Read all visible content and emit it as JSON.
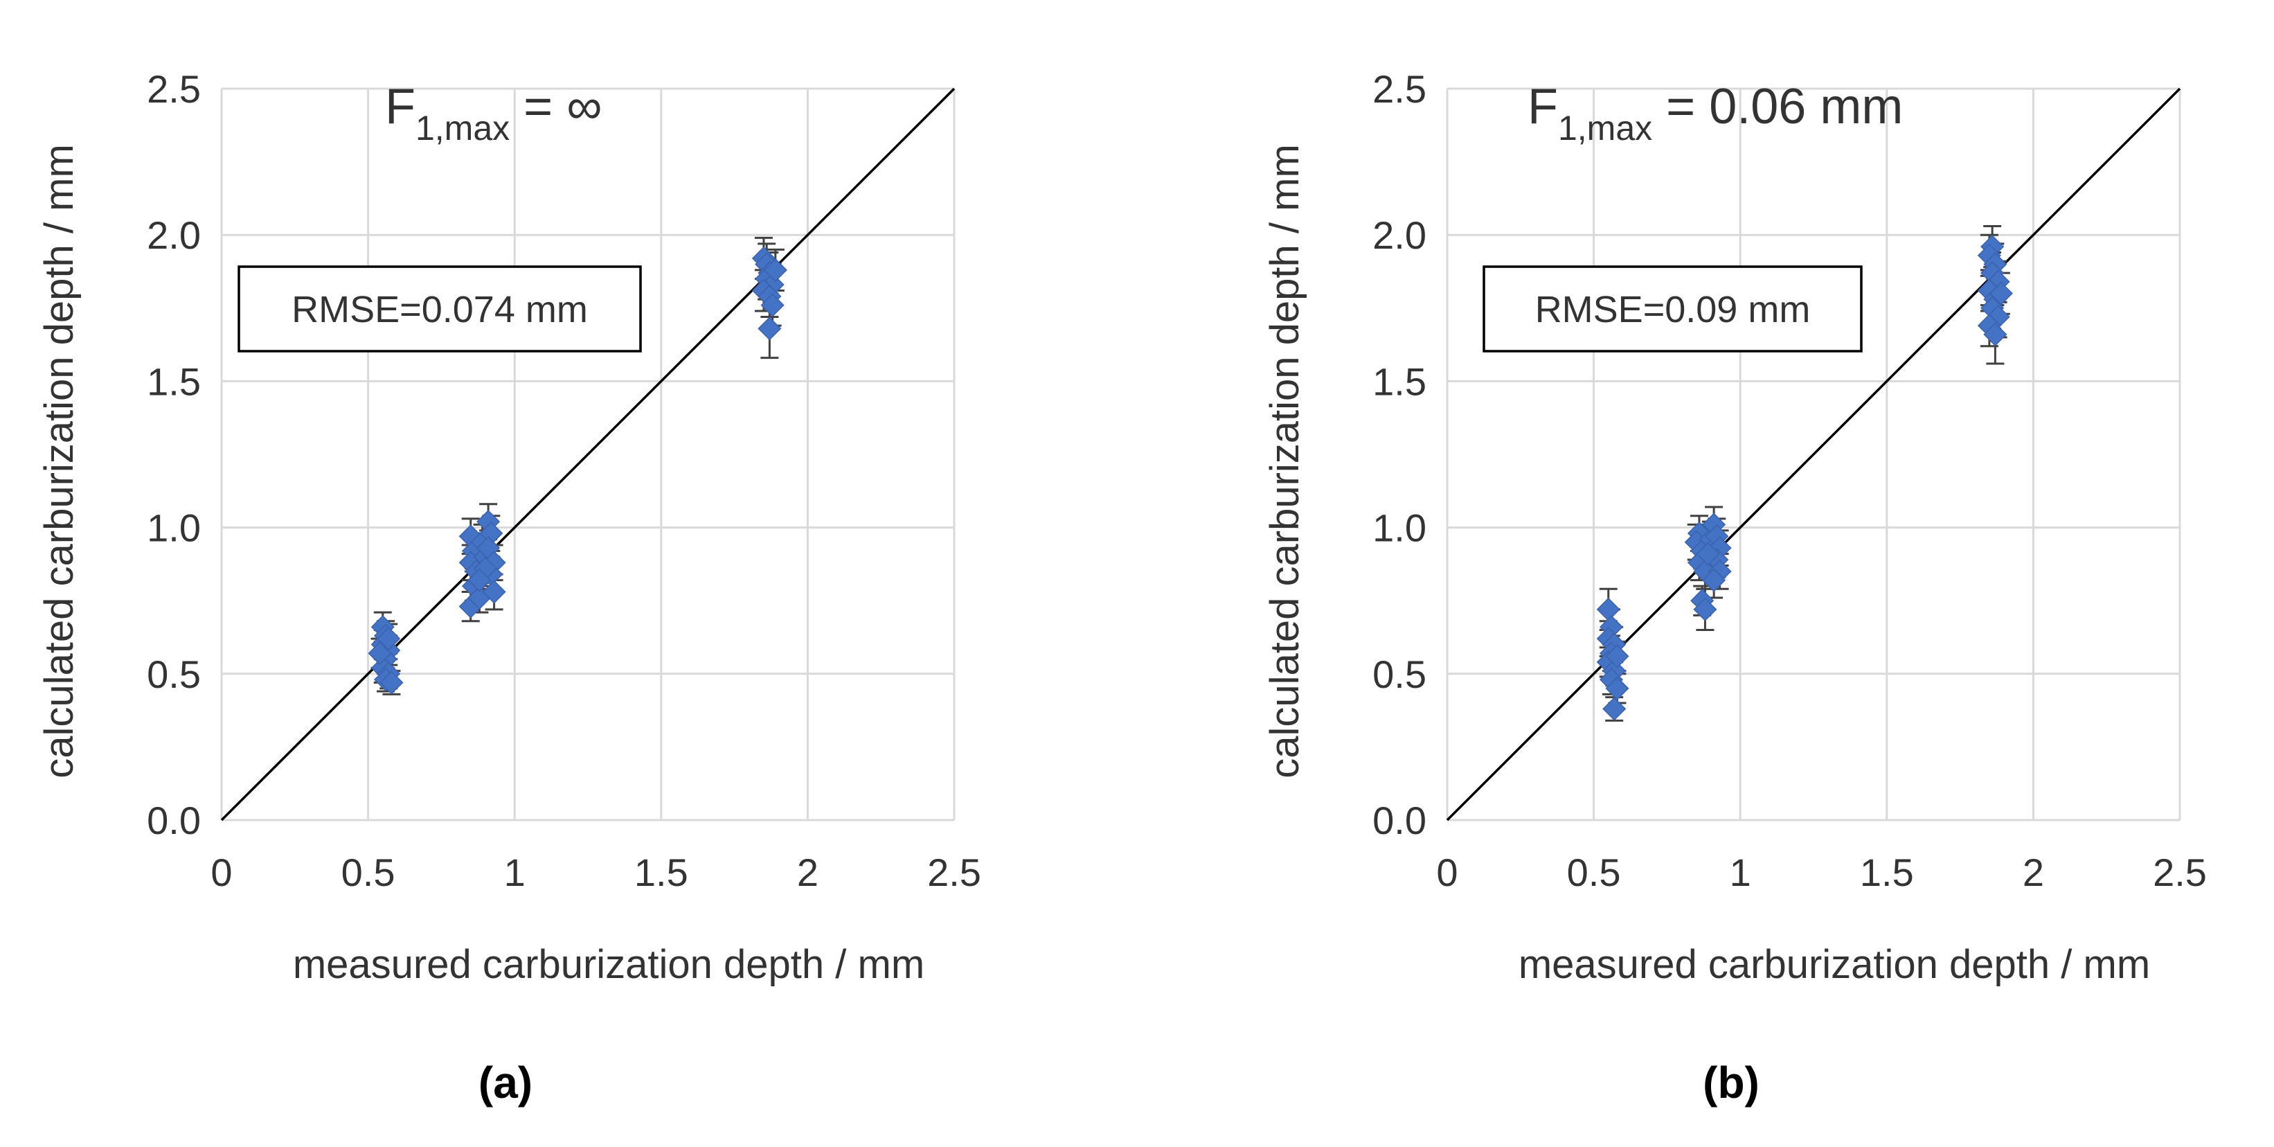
{
  "chart_data": [
    {
      "type": "scatter",
      "panel_label": "(a)",
      "annotation": {
        "main": "F",
        "sub": "1,max",
        "rest": " = ∞"
      },
      "rmse_label": "RMSE=0.074 mm",
      "xlabel": "measured carburization depth / mm",
      "ylabel": "calculated carburization depth / mm",
      "xlim": [
        0,
        2.5
      ],
      "ylim": [
        0,
        2.5
      ],
      "x_ticks": [
        "0",
        "0.5",
        "1",
        "1.5",
        "2",
        "2.5"
      ],
      "y_ticks": [
        "0.0",
        "0.5",
        "1.0",
        "1.5",
        "2.0",
        "2.5"
      ],
      "grid": true,
      "reference_line": [
        [
          0,
          0
        ],
        [
          2.5,
          2.5
        ]
      ],
      "marker_color": "#4472C4",
      "points": [
        {
          "x": 0.55,
          "y": 0.66,
          "err": 0.05
        },
        {
          "x": 0.56,
          "y": 0.63,
          "err": 0.05
        },
        {
          "x": 0.55,
          "y": 0.6,
          "err": 0.05
        },
        {
          "x": 0.57,
          "y": 0.58,
          "err": 0.05
        },
        {
          "x": 0.56,
          "y": 0.55,
          "err": 0.05
        },
        {
          "x": 0.55,
          "y": 0.52,
          "err": 0.05
        },
        {
          "x": 0.57,
          "y": 0.5,
          "err": 0.05
        },
        {
          "x": 0.56,
          "y": 0.48,
          "err": 0.04
        },
        {
          "x": 0.58,
          "y": 0.47,
          "err": 0.04
        },
        {
          "x": 0.57,
          "y": 0.62,
          "err": 0.05
        },
        {
          "x": 0.54,
          "y": 0.57,
          "err": 0.05
        },
        {
          "x": 0.85,
          "y": 0.97,
          "err": 0.06
        },
        {
          "x": 0.86,
          "y": 0.92,
          "err": 0.06
        },
        {
          "x": 0.85,
          "y": 0.88,
          "err": 0.06
        },
        {
          "x": 0.87,
          "y": 0.85,
          "err": 0.06
        },
        {
          "x": 0.86,
          "y": 0.8,
          "err": 0.05
        },
        {
          "x": 0.85,
          "y": 0.73,
          "err": 0.05
        },
        {
          "x": 0.88,
          "y": 0.76,
          "err": 0.05
        },
        {
          "x": 0.89,
          "y": 0.95,
          "err": 0.06
        },
        {
          "x": 0.9,
          "y": 0.9,
          "err": 0.06
        },
        {
          "x": 0.91,
          "y": 1.02,
          "err": 0.06
        },
        {
          "x": 0.92,
          "y": 0.98,
          "err": 0.06
        },
        {
          "x": 0.91,
          "y": 0.93,
          "err": 0.06
        },
        {
          "x": 0.93,
          "y": 0.88,
          "err": 0.06
        },
        {
          "x": 0.92,
          "y": 0.84,
          "err": 0.06
        },
        {
          "x": 0.93,
          "y": 0.78,
          "err": 0.06
        },
        {
          "x": 0.9,
          "y": 0.86,
          "err": 0.06
        },
        {
          "x": 0.88,
          "y": 0.82,
          "err": 0.06
        },
        {
          "x": 1.85,
          "y": 1.92,
          "err": 0.07
        },
        {
          "x": 1.86,
          "y": 1.9,
          "err": 0.07
        },
        {
          "x": 1.87,
          "y": 1.87,
          "err": 0.07
        },
        {
          "x": 1.86,
          "y": 1.85,
          "err": 0.07
        },
        {
          "x": 1.88,
          "y": 1.83,
          "err": 0.07
        },
        {
          "x": 1.85,
          "y": 1.81,
          "err": 0.07
        },
        {
          "x": 1.87,
          "y": 1.79,
          "err": 0.07
        },
        {
          "x": 1.88,
          "y": 1.76,
          "err": 0.07
        },
        {
          "x": 1.89,
          "y": 1.88,
          "err": 0.07
        },
        {
          "x": 1.87,
          "y": 1.68,
          "err": 0.1
        }
      ]
    },
    {
      "type": "scatter",
      "panel_label": "(b)",
      "annotation": {
        "main": "F",
        "sub": "1,max",
        "rest": " = 0.06 mm"
      },
      "rmse_label": "RMSE=0.09 mm",
      "xlabel": "measured carburization depth / mm",
      "ylabel": "calculated carburization depth / mm",
      "xlim": [
        0,
        2.5
      ],
      "ylim": [
        0,
        2.5
      ],
      "x_ticks": [
        "0",
        "0.5",
        "1",
        "1.5",
        "2",
        "2.5"
      ],
      "y_ticks": [
        "0.0",
        "0.5",
        "1.0",
        "1.5",
        "2.0",
        "2.5"
      ],
      "grid": true,
      "reference_line": [
        [
          0,
          0
        ],
        [
          2.5,
          2.5
        ]
      ],
      "marker_color": "#4472C4",
      "points": [
        {
          "x": 0.55,
          "y": 0.72,
          "err": 0.07
        },
        {
          "x": 0.56,
          "y": 0.66,
          "err": 0.06
        },
        {
          "x": 0.55,
          "y": 0.62,
          "err": 0.06
        },
        {
          "x": 0.57,
          "y": 0.6,
          "err": 0.06
        },
        {
          "x": 0.56,
          "y": 0.57,
          "err": 0.06
        },
        {
          "x": 0.55,
          "y": 0.54,
          "err": 0.05
        },
        {
          "x": 0.57,
          "y": 0.51,
          "err": 0.05
        },
        {
          "x": 0.56,
          "y": 0.48,
          "err": 0.05
        },
        {
          "x": 0.58,
          "y": 0.45,
          "err": 0.05
        },
        {
          "x": 0.57,
          "y": 0.38,
          "err": 0.04
        },
        {
          "x": 0.58,
          "y": 0.56,
          "err": 0.05
        },
        {
          "x": 0.86,
          "y": 0.98,
          "err": 0.06
        },
        {
          "x": 0.85,
          "y": 0.95,
          "err": 0.06
        },
        {
          "x": 0.87,
          "y": 0.92,
          "err": 0.06
        },
        {
          "x": 0.86,
          "y": 0.88,
          "err": 0.06
        },
        {
          "x": 0.88,
          "y": 0.85,
          "err": 0.06
        },
        {
          "x": 0.87,
          "y": 0.75,
          "err": 0.05
        },
        {
          "x": 0.88,
          "y": 0.72,
          "err": 0.07
        },
        {
          "x": 0.9,
          "y": 0.96,
          "err": 0.06
        },
        {
          "x": 0.91,
          "y": 1.01,
          "err": 0.06
        },
        {
          "x": 0.92,
          "y": 0.97,
          "err": 0.06
        },
        {
          "x": 0.93,
          "y": 0.93,
          "err": 0.06
        },
        {
          "x": 0.92,
          "y": 0.89,
          "err": 0.06
        },
        {
          "x": 0.93,
          "y": 0.85,
          "err": 0.06
        },
        {
          "x": 0.91,
          "y": 0.82,
          "err": 0.06
        },
        {
          "x": 0.89,
          "y": 0.91,
          "err": 0.06
        },
        {
          "x": 1.86,
          "y": 1.96,
          "err": 0.07
        },
        {
          "x": 1.85,
          "y": 1.93,
          "err": 0.07
        },
        {
          "x": 1.87,
          "y": 1.9,
          "err": 0.07
        },
        {
          "x": 1.86,
          "y": 1.87,
          "err": 0.07
        },
        {
          "x": 1.88,
          "y": 1.84,
          "err": 0.07
        },
        {
          "x": 1.85,
          "y": 1.81,
          "err": 0.07
        },
        {
          "x": 1.87,
          "y": 1.78,
          "err": 0.07
        },
        {
          "x": 1.86,
          "y": 1.75,
          "err": 0.07
        },
        {
          "x": 1.88,
          "y": 1.72,
          "err": 0.07
        },
        {
          "x": 1.85,
          "y": 1.69,
          "err": 0.07
        },
        {
          "x": 1.87,
          "y": 1.66,
          "err": 0.1
        },
        {
          "x": 1.89,
          "y": 1.8,
          "err": 0.07
        }
      ]
    }
  ]
}
